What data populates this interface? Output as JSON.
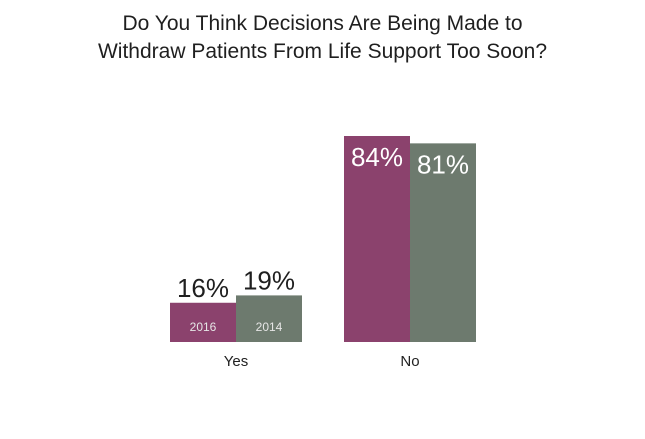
{
  "title_lines": [
    "Do You Think Decisions Are Being Made to",
    "Withdraw Patients From Life Support Too Soon?"
  ],
  "colors": {
    "2016": "#8b426d",
    "2014": "#6d7a6e",
    "text": "#1f1f1f",
    "inner_text": "#e6e6e6"
  },
  "chart_data": {
    "type": "bar",
    "title": "Do You Think Decisions Are Being Made to Withdraw Patients From Life Support Too Soon?",
    "categories": [
      "Yes",
      "No"
    ],
    "series": [
      {
        "name": "2016",
        "values": [
          16,
          84
        ],
        "labels": [
          "16%",
          "84%"
        ]
      },
      {
        "name": "2014",
        "values": [
          19,
          81
        ],
        "labels": [
          "19%",
          "81%"
        ]
      }
    ],
    "ylim": [
      0,
      84
    ],
    "grid": false,
    "legend": "series names shown inside the Yes bars"
  }
}
